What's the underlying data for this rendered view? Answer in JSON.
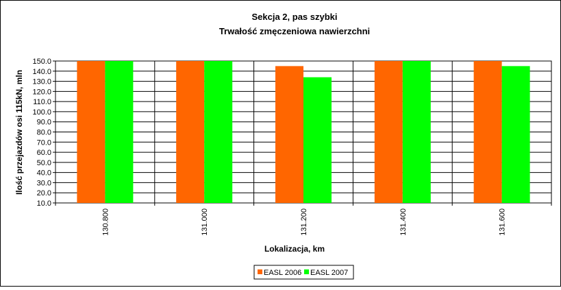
{
  "chart_data": {
    "type": "bar",
    "title": "Sekcja 2, pas szybki",
    "subtitle": "Trwałość zmęczeniowa nawierzchni",
    "xlabel": "Lokalizacja, km",
    "ylabel": "Ilość przejazdów osi 115kN, mln",
    "categories": [
      "130.800",
      "131.000",
      "131.200",
      "131.400",
      "131.600"
    ],
    "ylim": [
      10,
      150
    ],
    "ytick_step": 10,
    "ytick_labels": [
      "10.0",
      "20.0",
      "30.0",
      "40.0",
      "50.0",
      "60.0",
      "70.0",
      "80.0",
      "90.0",
      "100.0",
      "110.0",
      "120.0",
      "130.0",
      "140.0",
      "150.0"
    ],
    "grid": true,
    "legend_position": "bottom",
    "series": [
      {
        "name": "EASL 2006",
        "color": "#ff6600",
        "values": [
          150,
          150,
          145,
          150,
          150
        ]
      },
      {
        "name": "EASL 2007",
        "color": "#00ff00",
        "values": [
          150,
          150,
          134,
          150,
          145
        ]
      }
    ]
  }
}
